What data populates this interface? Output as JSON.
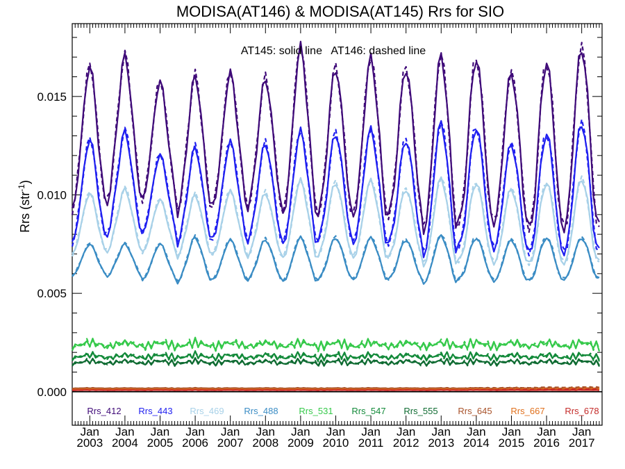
{
  "chart_data": {
    "type": "line",
    "title": "MODISA(AT146) & MODISA(AT145)  Rrs for SIO",
    "ylabel_main": "Rrs (str",
    "ylabel_sup": "-1",
    "ylabel_end": ")",
    "annotation": "AT145: solid line   AT146: dashed line",
    "ylim": [
      -0.0017,
      0.0187
    ],
    "xlim_years": [
      2002.5,
      2017.58
    ],
    "grid": false,
    "legend_placement": "bottom",
    "y_ticks": [
      {
        "value": 0.0,
        "label": "0.000"
      },
      {
        "value": 0.005,
        "label": "0.005"
      },
      {
        "value": 0.01,
        "label": "0.010"
      },
      {
        "value": 0.015,
        "label": "0.015"
      }
    ],
    "x_ticks": [
      {
        "year": 2003,
        "month_label": "Jan",
        "year_label": "2003"
      },
      {
        "year": 2004,
        "month_label": "Jan",
        "year_label": "2004"
      },
      {
        "year": 2005,
        "month_label": "Jan",
        "year_label": "2005"
      },
      {
        "year": 2006,
        "month_label": "Jan",
        "year_label": "2006"
      },
      {
        "year": 2007,
        "month_label": "Jan",
        "year_label": "2007"
      },
      {
        "year": 2008,
        "month_label": "Jan",
        "year_label": "2008"
      },
      {
        "year": 2009,
        "month_label": "Jan",
        "year_label": "2009"
      },
      {
        "year": 2010,
        "month_label": "Jan",
        "year_label": "2010"
      },
      {
        "year": 2011,
        "month_label": "Jan",
        "year_label": "2011"
      },
      {
        "year": 2012,
        "month_label": "Jan",
        "year_label": "2012"
      },
      {
        "year": 2013,
        "month_label": "Jan",
        "year_label": "2013"
      },
      {
        "year": 2014,
        "month_label": "Jan",
        "year_label": "2014"
      },
      {
        "year": 2015,
        "month_label": "Jan",
        "year_label": "2015"
      },
      {
        "year": 2016,
        "month_label": "Jan",
        "year_label": "2016"
      },
      {
        "year": 2017,
        "month_label": "Jan",
        "year_label": "2017"
      }
    ],
    "series": [
      {
        "name": "Rrs_412",
        "color": "#3f0a78",
        "winter_peaks": [
          0.0161,
          0.0166,
          0.0154,
          0.0156,
          0.0158,
          0.0155,
          0.017,
          0.016,
          0.0165,
          0.016,
          0.0166,
          0.0165,
          0.0158,
          0.0163,
          0.017
        ],
        "summer_troughs": [
          0.0093,
          0.0098,
          0.0098,
          0.0092,
          0.0095,
          0.0094,
          0.009,
          0.009,
          0.0089,
          0.0089,
          0.0081,
          0.0085,
          0.0085,
          0.0081,
          0.0082
        ]
      },
      {
        "name": "Rrs_443",
        "color": "#1f1ff0",
        "winter_peaks": [
          0.0125,
          0.0129,
          0.0118,
          0.0121,
          0.0124,
          0.0123,
          0.0129,
          0.0128,
          0.013,
          0.0125,
          0.0133,
          0.0131,
          0.0123,
          0.0128,
          0.0133
        ],
        "summer_troughs": [
          0.0076,
          0.0081,
          0.0081,
          0.0076,
          0.0078,
          0.0077,
          0.0075,
          0.0077,
          0.0075,
          0.0075,
          0.0069,
          0.0073,
          0.0072,
          0.0069,
          0.007
        ]
      },
      {
        "name": "Rrs_469",
        "color": "#a8d1e8",
        "winter_peaks": [
          0.0099,
          0.0101,
          0.0096,
          0.0098,
          0.01,
          0.0099,
          0.0105,
          0.0104,
          0.0105,
          0.0101,
          0.0106,
          0.0104,
          0.0101,
          0.0104,
          0.0106
        ],
        "summer_troughs": [
          0.007,
          0.0072,
          0.0071,
          0.0069,
          0.007,
          0.0069,
          0.0068,
          0.0069,
          0.0068,
          0.0068,
          0.0064,
          0.0066,
          0.0065,
          0.0064,
          0.0065
        ]
      },
      {
        "name": "Rrs_488",
        "color": "#3a8cc4",
        "winter_peaks": [
          0.0074,
          0.0074,
          0.0074,
          0.0077,
          0.0076,
          0.0076,
          0.0077,
          0.0077,
          0.0077,
          0.0076,
          0.0078,
          0.0077,
          0.0076,
          0.0077,
          0.0077
        ],
        "summer_troughs": [
          0.0059,
          0.0059,
          0.0057,
          0.0056,
          0.0057,
          0.0057,
          0.0056,
          0.0057,
          0.0057,
          0.0057,
          0.0055,
          0.0057,
          0.0056,
          0.0056,
          0.0057
        ]
      },
      {
        "name": "Rrs_531",
        "color": "#35c94a",
        "constant": 0.0024
      },
      {
        "name": "Rrs_547",
        "color": "#138a3a",
        "constant": 0.0018
      },
      {
        "name": "Rrs_555",
        "color": "#0f6b32",
        "constant": 0.0015
      },
      {
        "name": "Rrs_645",
        "color": "#a8522a",
        "constant": 0.00018
      },
      {
        "name": "Rrs_667",
        "color": "#e0701c",
        "constant": 0.00012
      },
      {
        "name": "Rrs_678",
        "color": "#c42a28",
        "constant": 8e-05
      }
    ]
  }
}
